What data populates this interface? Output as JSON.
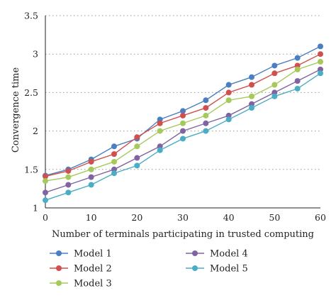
{
  "chart_data": {
    "type": "line",
    "title": "",
    "xlabel": "Number of terminals participating in trusted computing",
    "ylabel": "Convergence time",
    "x": [
      0,
      5,
      10,
      15,
      20,
      25,
      30,
      35,
      40,
      45,
      50,
      55,
      60
    ],
    "xlim": [
      0,
      60
    ],
    "ylim": [
      1,
      3.5
    ],
    "xticks": [
      "0",
      "10",
      "20",
      "30",
      "40",
      "50",
      "60"
    ],
    "yticks": [
      "1",
      "1.5",
      "2",
      "2.5",
      "3",
      "3.5"
    ],
    "grid": "horizontal dotted",
    "legend_position": "bottom",
    "series": [
      {
        "name": "Model 1",
        "color": "#4a7fc1",
        "values": [
          1.42,
          1.5,
          1.63,
          1.8,
          1.9,
          2.15,
          2.26,
          2.4,
          2.6,
          2.7,
          2.85,
          2.95,
          3.1
        ]
      },
      {
        "name": "Model 2",
        "color": "#d0504d",
        "values": [
          1.41,
          1.48,
          1.6,
          1.7,
          1.92,
          2.1,
          2.2,
          2.3,
          2.5,
          2.6,
          2.75,
          2.85,
          3.0
        ]
      },
      {
        "name": "Model 3",
        "color": "#a5c95a",
        "values": [
          1.35,
          1.4,
          1.5,
          1.6,
          1.8,
          2.0,
          2.1,
          2.2,
          2.4,
          2.45,
          2.6,
          2.8,
          2.9
        ]
      },
      {
        "name": "Model 4",
        "color": "#8064a2",
        "values": [
          1.2,
          1.3,
          1.4,
          1.5,
          1.65,
          1.8,
          2.0,
          2.1,
          2.2,
          2.35,
          2.5,
          2.65,
          2.8
        ]
      },
      {
        "name": "Model 5",
        "color": "#4bacc6",
        "values": [
          1.1,
          1.2,
          1.3,
          1.45,
          1.55,
          1.75,
          1.9,
          2.0,
          2.15,
          2.3,
          2.45,
          2.55,
          2.75
        ]
      }
    ]
  }
}
